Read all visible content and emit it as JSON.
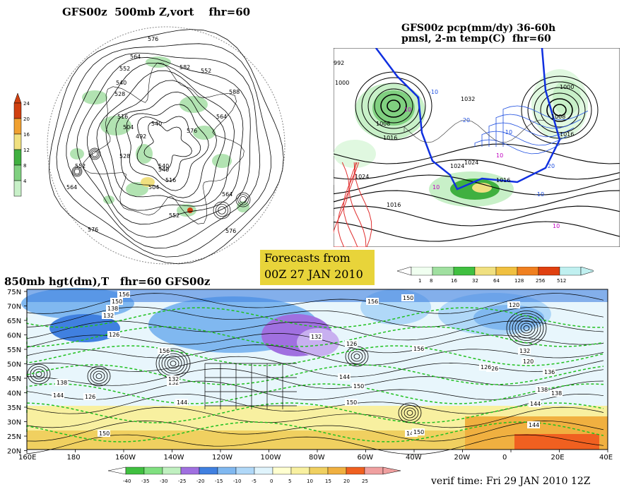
{
  "panel1": {
    "title": "GFS00z  500mb Z,vort    fhr=60",
    "colorbar": [
      "24",
      "20",
      "16",
      "12",
      "8",
      "4"
    ],
    "colors": [
      "#d04010",
      "#f0a030",
      "#f0e080",
      "#40b040",
      "#80d080",
      "#c8f0c8"
    ],
    "contour_labels": [
      "576",
      "564",
      "552",
      "540",
      "528",
      "516",
      "504",
      "492",
      "540",
      "552",
      "564",
      "576",
      "552",
      "564",
      "582",
      "588",
      "576",
      "564",
      "552",
      "540",
      "516",
      "504",
      "528",
      "576",
      "540"
    ]
  },
  "panel2": {
    "title_line1": "GFS00z pcp(mm/dy) 36-60h",
    "title_line2": "pmsl, 2-m temp(C)  fhr=60",
    "labels": [
      "992",
      "1000",
      "1008",
      "1016",
      "1024",
      "1032",
      "1024",
      "1016",
      "1016",
      "1024",
      "1000",
      "1008",
      "1016",
      "10",
      "10",
      "-10",
      "-20",
      "-10",
      "-20",
      "-10",
      "10",
      "10"
    ]
  },
  "forecast_box": {
    "line1": "Forecasts from",
    "line2": "00Z 27 JAN 2010"
  },
  "pcp_colorbar": {
    "labels": [
      "1",
      "8",
      "16",
      "32",
      "64",
      "128",
      "256",
      "512"
    ],
    "colors": [
      "#f0fff0",
      "#a0e0a0",
      "#40c040",
      "#f0e080",
      "#f0c040",
      "#f08020",
      "#e04010",
      "#c0f0f0"
    ]
  },
  "panel3": {
    "title": "850mb hgt(dm),T   fhr=60 GFS00z",
    "lat_labels": [
      "75N",
      "70N",
      "65N",
      "60N",
      "55N",
      "50N",
      "45N",
      "40N",
      "35N",
      "30N",
      "25N",
      "20N"
    ],
    "lon_labels": [
      "160E",
      "180",
      "160W",
      "140W",
      "120W",
      "100W",
      "80W",
      "60W",
      "40W",
      "20W",
      "0",
      "20E",
      "40E"
    ],
    "contour_labels": [
      "156",
      "150",
      "138",
      "132",
      "126",
      "138",
      "144",
      "126",
      "132",
      "144",
      "150",
      "156",
      "150",
      "132",
      "126",
      "144",
      "150",
      "156",
      "144",
      "150",
      "120",
      "126",
      "132",
      "138",
      "144",
      "136",
      "120",
      "126",
      "132",
      "156",
      "144",
      "150",
      "138"
    ],
    "temp_colorbar": [
      "-40",
      "-35",
      "-30",
      "-25",
      "-20",
      "-15",
      "-10",
      "-5",
      "0",
      "5",
      "10",
      "15",
      "20",
      "25"
    ],
    "temp_colors": [
      "#40c040",
      "#80e080",
      "#c0f0c0",
      "#a070e0",
      "#4080e0",
      "#80b8f0",
      "#b0d8f8",
      "#e0f4fc",
      "#ffffd0",
      "#f8f0a0",
      "#f0d060",
      "#f0b040",
      "#f06020",
      "#f0a0a0"
    ]
  },
  "verif": "verif time: Fri 29 JAN 2010 12Z"
}
